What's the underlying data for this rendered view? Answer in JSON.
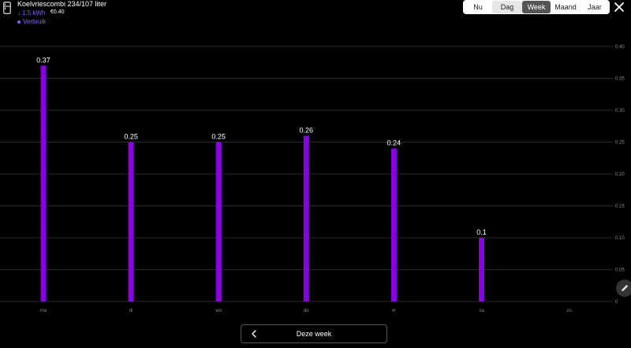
{
  "header": {
    "title": "Koelvriescombi 234/107 liter",
    "energy": "1.5 kWh",
    "cost": "€0.40",
    "legend_label": "Verbruik",
    "device_icon": "fridge-icon"
  },
  "tabs": [
    "Nu",
    "Dag",
    "Week",
    "Maand",
    "Jaar"
  ],
  "selected_tab": "Week",
  "footer": {
    "week_label": "Deze week",
    "prev_icon": "chevron-left-icon"
  },
  "colors": {
    "bar_fill": "#8a00e6",
    "accent": "#8a5cff",
    "background": "#000000"
  },
  "chart_data": {
    "type": "bar",
    "categories": [
      "ma",
      "di",
      "wo",
      "do",
      "vr",
      "za",
      "zo"
    ],
    "values": [
      0.37,
      0.25,
      0.25,
      0.26,
      0.24,
      0.1,
      null
    ],
    "value_labels": [
      "0.37",
      "0.25",
      "0.25",
      "0.26",
      "0.24",
      "0.1",
      ""
    ],
    "ylim": [
      0,
      0.4
    ],
    "yticks": [
      "0",
      "0.05",
      "0.10",
      "0.15",
      "0.20",
      "0.25",
      "0.30",
      "0.35",
      "0.40"
    ],
    "ytick_values": [
      0,
      0.05,
      0.1,
      0.15,
      0.2,
      0.25,
      0.3,
      0.35,
      0.4
    ],
    "grid": true
  }
}
